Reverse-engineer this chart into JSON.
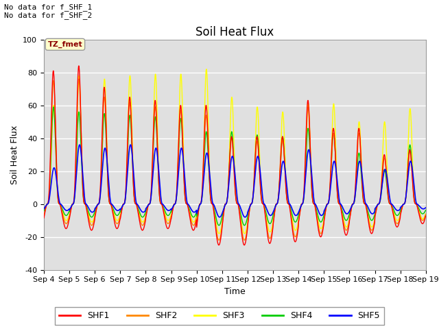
{
  "title": "Soil Heat Flux",
  "xlabel": "Time",
  "ylabel": "Soil Heat Flux",
  "ylim": [
    -40,
    100
  ],
  "yticks": [
    -40,
    -20,
    0,
    20,
    40,
    60,
    80,
    100
  ],
  "x_labels": [
    "Sep 4",
    "Sep 5",
    "Sep 6",
    "Sep 7",
    "Sep 8",
    "Sep 9",
    "Sep 10",
    "Sep 11",
    "Sep 12",
    "Sep 13",
    "Sep 14",
    "Sep 15",
    "Sep 16",
    "Sep 17",
    "Sep 18",
    "Sep 19"
  ],
  "annotation_top": "No data for f_SHF_1\nNo data for f_SHF_2",
  "tz_label": "TZ_fmet",
  "colors": {
    "SHF1": "#FF0000",
    "SHF2": "#FF8800",
    "SHF3": "#FFFF00",
    "SHF4": "#00CC00",
    "SHF5": "#0000FF"
  },
  "plot_bg": "#E0E0E0",
  "fig_bg": "#FFFFFF",
  "grid_color": "#FFFFFF",
  "title_fontsize": 12,
  "label_fontsize": 9,
  "tick_fontsize": 8,
  "legend_fontsize": 9,
  "n_days": 15,
  "points_per_day": 144,
  "shf1_peaks": [
    81,
    84,
    71,
    65,
    63,
    60,
    60,
    41,
    41,
    41,
    63,
    46,
    46,
    30,
    33
  ],
  "shf2_peaks": [
    75,
    76,
    65,
    62,
    59,
    57,
    54,
    40,
    38,
    39,
    59,
    43,
    43,
    28,
    32
  ],
  "shf3_peaks": [
    60,
    78,
    76,
    78,
    79,
    79,
    82,
    65,
    59,
    56,
    61,
    61,
    50,
    50,
    58
  ],
  "shf4_peaks": [
    59,
    56,
    55,
    54,
    53,
    52,
    44,
    44,
    42,
    41,
    46,
    43,
    31,
    21,
    36
  ],
  "shf5_peaks": [
    22,
    36,
    34,
    36,
    34,
    34,
    31,
    29,
    29,
    26,
    33,
    26,
    26,
    21,
    26
  ],
  "shf1_troughs": [
    -15,
    -16,
    -15,
    -16,
    -15,
    -16,
    -25,
    -25,
    -24,
    -23,
    -20,
    -19,
    -18,
    -14,
    -12
  ],
  "shf2_troughs": [
    -12,
    -13,
    -12,
    -13,
    -12,
    -13,
    -22,
    -22,
    -21,
    -20,
    -18,
    -16,
    -16,
    -12,
    -10
  ],
  "shf3_troughs": [
    -10,
    -11,
    -10,
    -11,
    -10,
    -11,
    -18,
    -18,
    -17,
    -16,
    -15,
    -14,
    -14,
    -10,
    -9
  ],
  "shf4_troughs": [
    -7,
    -8,
    -7,
    -8,
    -7,
    -8,
    -13,
    -13,
    -12,
    -11,
    -11,
    -10,
    -10,
    -7,
    -6
  ],
  "shf5_troughs": [
    -4,
    -5,
    -4,
    -5,
    -4,
    -5,
    -8,
    -8,
    -7,
    -7,
    -7,
    -6,
    -6,
    -4,
    -3
  ]
}
